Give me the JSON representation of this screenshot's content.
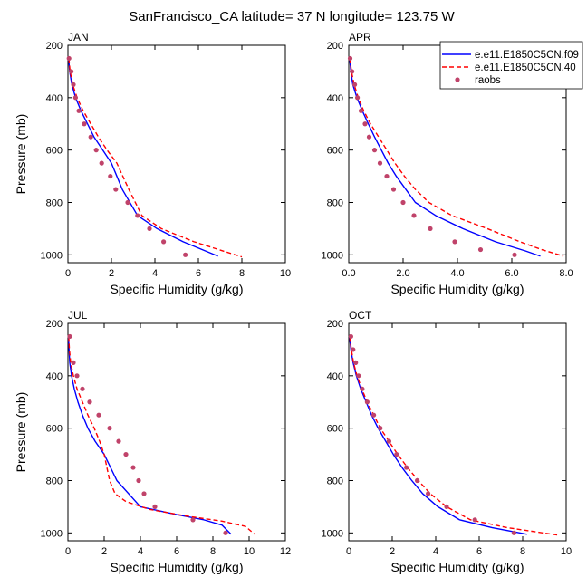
{
  "figure": {
    "title": "SanFrancisco_CA  latitude= 37 N longitude= 123.75 W"
  },
  "legend": {
    "entries": [
      {
        "label": "e.e11.E1850C5CN.f09",
        "color": "#0000ff",
        "style": "solid"
      },
      {
        "label": "e.e11.E1850C5CN.40",
        "color": "#ff0000",
        "style": "dashed"
      },
      {
        "label": "raobs",
        "color": "#c0436a",
        "style": "marker"
      }
    ]
  },
  "chart_data": [
    {
      "type": "line",
      "title": "JAN",
      "xlabel": "Specific Humidity (g/kg)",
      "ylabel": "Pressure (mb)",
      "xlim": [
        0,
        10
      ],
      "ylim": [
        200,
        1030
      ],
      "y_inverted": true,
      "xticks": [
        "0",
        "2",
        "4",
        "6",
        "8",
        "10"
      ],
      "xtick_values": [
        0,
        2,
        4,
        6,
        8,
        10
      ],
      "yticks": [
        "200",
        "400",
        "600",
        "800",
        "1000"
      ],
      "ytick_values": [
        200,
        400,
        600,
        800,
        1000
      ],
      "series": [
        {
          "name": "e.e11.E1850C5CN.f09",
          "color": "#0000ff",
          "style": "solid",
          "x": [
            0.03,
            0.08,
            0.18,
            0.35,
            0.6,
            0.9,
            1.2,
            1.6,
            2.0,
            2.5,
            3.2,
            4.1,
            5.3,
            6.9
          ],
          "y": [
            250,
            300,
            350,
            400,
            450,
            500,
            550,
            600,
            650,
            750,
            850,
            900,
            950,
            1005
          ]
        },
        {
          "name": "e.e11.E1850C5CN.40",
          "color": "#ff0000",
          "style": "dashed",
          "x": [
            0.04,
            0.1,
            0.22,
            0.42,
            0.7,
            1.05,
            1.4,
            1.8,
            2.25,
            2.8,
            3.4,
            4.3,
            5.8,
            8.0
          ],
          "y": [
            250,
            300,
            350,
            400,
            450,
            500,
            550,
            600,
            650,
            750,
            850,
            900,
            950,
            1008
          ]
        },
        {
          "name": "raobs",
          "color": "#c0436a",
          "style": "marker",
          "x": [
            0.05,
            0.15,
            0.25,
            0.35,
            0.5,
            0.75,
            1.05,
            1.3,
            1.55,
            1.95,
            2.2,
            2.75,
            3.2,
            3.75,
            4.4,
            5.4
          ],
          "y": [
            250,
            300,
            350,
            400,
            450,
            500,
            550,
            600,
            650,
            700,
            750,
            800,
            850,
            900,
            950,
            1000
          ]
        }
      ]
    },
    {
      "type": "line",
      "title": "APR",
      "xlabel": "Specific Humidity (g/kg)",
      "ylabel": "",
      "xlim": [
        0,
        8
      ],
      "ylim": [
        200,
        1030
      ],
      "y_inverted": true,
      "xticks": [
        "0.0",
        "2.0",
        "4.0",
        "6.0",
        "8.0"
      ],
      "xtick_values": [
        0,
        2,
        4,
        6,
        8
      ],
      "yticks": [
        "200",
        "400",
        "600",
        "800",
        "1000"
      ],
      "ytick_values": [
        200,
        400,
        600,
        800,
        1000
      ],
      "series": [
        {
          "name": "e.e11.E1850C5CN.f09",
          "color": "#0000ff",
          "style": "solid",
          "x": [
            0.03,
            0.08,
            0.15,
            0.3,
            0.5,
            0.72,
            0.95,
            1.2,
            1.45,
            1.75,
            2.1,
            2.45,
            3.2,
            4.2,
            5.4,
            6.5,
            7.05
          ],
          "y": [
            250,
            300,
            350,
            400,
            450,
            500,
            550,
            600,
            650,
            700,
            750,
            800,
            850,
            900,
            950,
            985,
            1005
          ]
        },
        {
          "name": "e.e11.E1850C5CN.40",
          "color": "#ff0000",
          "style": "dashed",
          "x": [
            0.04,
            0.1,
            0.2,
            0.35,
            0.55,
            0.8,
            1.1,
            1.4,
            1.7,
            2.05,
            2.45,
            2.95,
            3.8,
            5.1,
            6.3,
            7.1,
            7.9
          ],
          "y": [
            250,
            300,
            350,
            400,
            450,
            500,
            550,
            600,
            650,
            700,
            750,
            800,
            850,
            900,
            950,
            980,
            1005
          ]
        },
        {
          "name": "raobs",
          "color": "#c0436a",
          "style": "marker",
          "x": [
            0.05,
            0.12,
            0.22,
            0.32,
            0.45,
            0.6,
            0.75,
            0.95,
            1.15,
            1.4,
            1.65,
            2.0,
            2.4,
            3.0,
            3.9,
            4.85,
            6.1
          ],
          "y": [
            250,
            300,
            350,
            400,
            450,
            500,
            550,
            600,
            650,
            700,
            750,
            800,
            850,
            900,
            950,
            980,
            1000
          ]
        }
      ]
    },
    {
      "type": "line",
      "title": "JUL",
      "xlabel": "Specific Humidity (g/kg)",
      "ylabel": "Pressure (mb)",
      "xlim": [
        0,
        12
      ],
      "ylim": [
        200,
        1030
      ],
      "y_inverted": true,
      "xticks": [
        "0",
        "2",
        "4",
        "6",
        "8",
        "10",
        "12"
      ],
      "xtick_values": [
        0,
        2,
        4,
        6,
        8,
        10,
        12
      ],
      "yticks": [
        "200",
        "400",
        "600",
        "800",
        "1000"
      ],
      "ytick_values": [
        200,
        400,
        600,
        800,
        1000
      ],
      "series": [
        {
          "name": "e.e11.E1850C5CN.f09",
          "color": "#0000ff",
          "style": "solid",
          "x": [
            0.03,
            0.06,
            0.1,
            0.2,
            0.35,
            0.55,
            0.8,
            1.1,
            1.5,
            2.0,
            2.7,
            4.0,
            6.0,
            7.5,
            8.5,
            9.0
          ],
          "y": [
            250,
            300,
            350,
            400,
            450,
            500,
            550,
            600,
            650,
            700,
            800,
            900,
            930,
            950,
            970,
            1005
          ]
        },
        {
          "name": "e.e11.E1850C5CN.40",
          "color": "#ff0000",
          "style": "dashed",
          "x": [
            0.04,
            0.08,
            0.15,
            0.3,
            0.5,
            0.8,
            1.1,
            1.45,
            1.75,
            2.0,
            2.3,
            2.6,
            3.2,
            4.5,
            6.5,
            8.5,
            9.8,
            10.3
          ],
          "y": [
            250,
            300,
            350,
            400,
            450,
            500,
            550,
            600,
            650,
            700,
            800,
            850,
            880,
            910,
            935,
            955,
            975,
            1005
          ]
        },
        {
          "name": "raobs",
          "color": "#c0436a",
          "style": "marker",
          "x": [
            0.1,
            0.3,
            0.5,
            0.8,
            1.2,
            1.7,
            2.3,
            2.8,
            3.2,
            3.6,
            3.9,
            4.2,
            4.8,
            6.9,
            8.7
          ],
          "y": [
            250,
            350,
            400,
            450,
            500,
            550,
            600,
            650,
            700,
            750,
            800,
            850,
            900,
            950,
            1000
          ]
        }
      ]
    },
    {
      "type": "line",
      "title": "OCT",
      "xlabel": "Specific Humidity (g/kg)",
      "ylabel": "",
      "xlim": [
        0,
        10
      ],
      "ylim": [
        200,
        1030
      ],
      "y_inverted": true,
      "xticks": [
        "0",
        "2",
        "4",
        "6",
        "8",
        "10"
      ],
      "xtick_values": [
        0,
        2,
        4,
        6,
        8,
        10
      ],
      "yticks": [
        "200",
        "400",
        "600",
        "800",
        "1000"
      ],
      "ytick_values": [
        200,
        400,
        600,
        800,
        1000
      ],
      "series": [
        {
          "name": "e.e11.E1850C5CN.f09",
          "color": "#0000ff",
          "style": "solid",
          "x": [
            0.03,
            0.1,
            0.2,
            0.35,
            0.55,
            0.8,
            1.05,
            1.35,
            1.7,
            2.05,
            2.45,
            2.9,
            3.4,
            4.1,
            5.1,
            6.6,
            8.2
          ],
          "y": [
            250,
            300,
            350,
            400,
            450,
            500,
            550,
            600,
            650,
            700,
            750,
            800,
            850,
            900,
            950,
            980,
            1005
          ]
        },
        {
          "name": "e.e11.E1850C5CN.40",
          "color": "#ff0000",
          "style": "dashed",
          "x": [
            0.04,
            0.12,
            0.22,
            0.38,
            0.6,
            0.85,
            1.15,
            1.45,
            1.85,
            2.25,
            2.7,
            3.2,
            3.75,
            4.5,
            5.6,
            7.3,
            9.6
          ],
          "y": [
            250,
            300,
            350,
            400,
            450,
            500,
            550,
            600,
            650,
            700,
            750,
            800,
            850,
            900,
            950,
            980,
            1008
          ]
        },
        {
          "name": "raobs",
          "color": "#c0436a",
          "style": "marker",
          "x": [
            0.1,
            0.2,
            0.32,
            0.45,
            0.62,
            0.85,
            1.15,
            1.45,
            1.85,
            2.2,
            2.65,
            3.15,
            3.65,
            4.5,
            5.8,
            7.6
          ],
          "y": [
            250,
            300,
            350,
            400,
            450,
            500,
            550,
            600,
            650,
            700,
            750,
            800,
            850,
            900,
            950,
            1000
          ]
        }
      ]
    }
  ]
}
